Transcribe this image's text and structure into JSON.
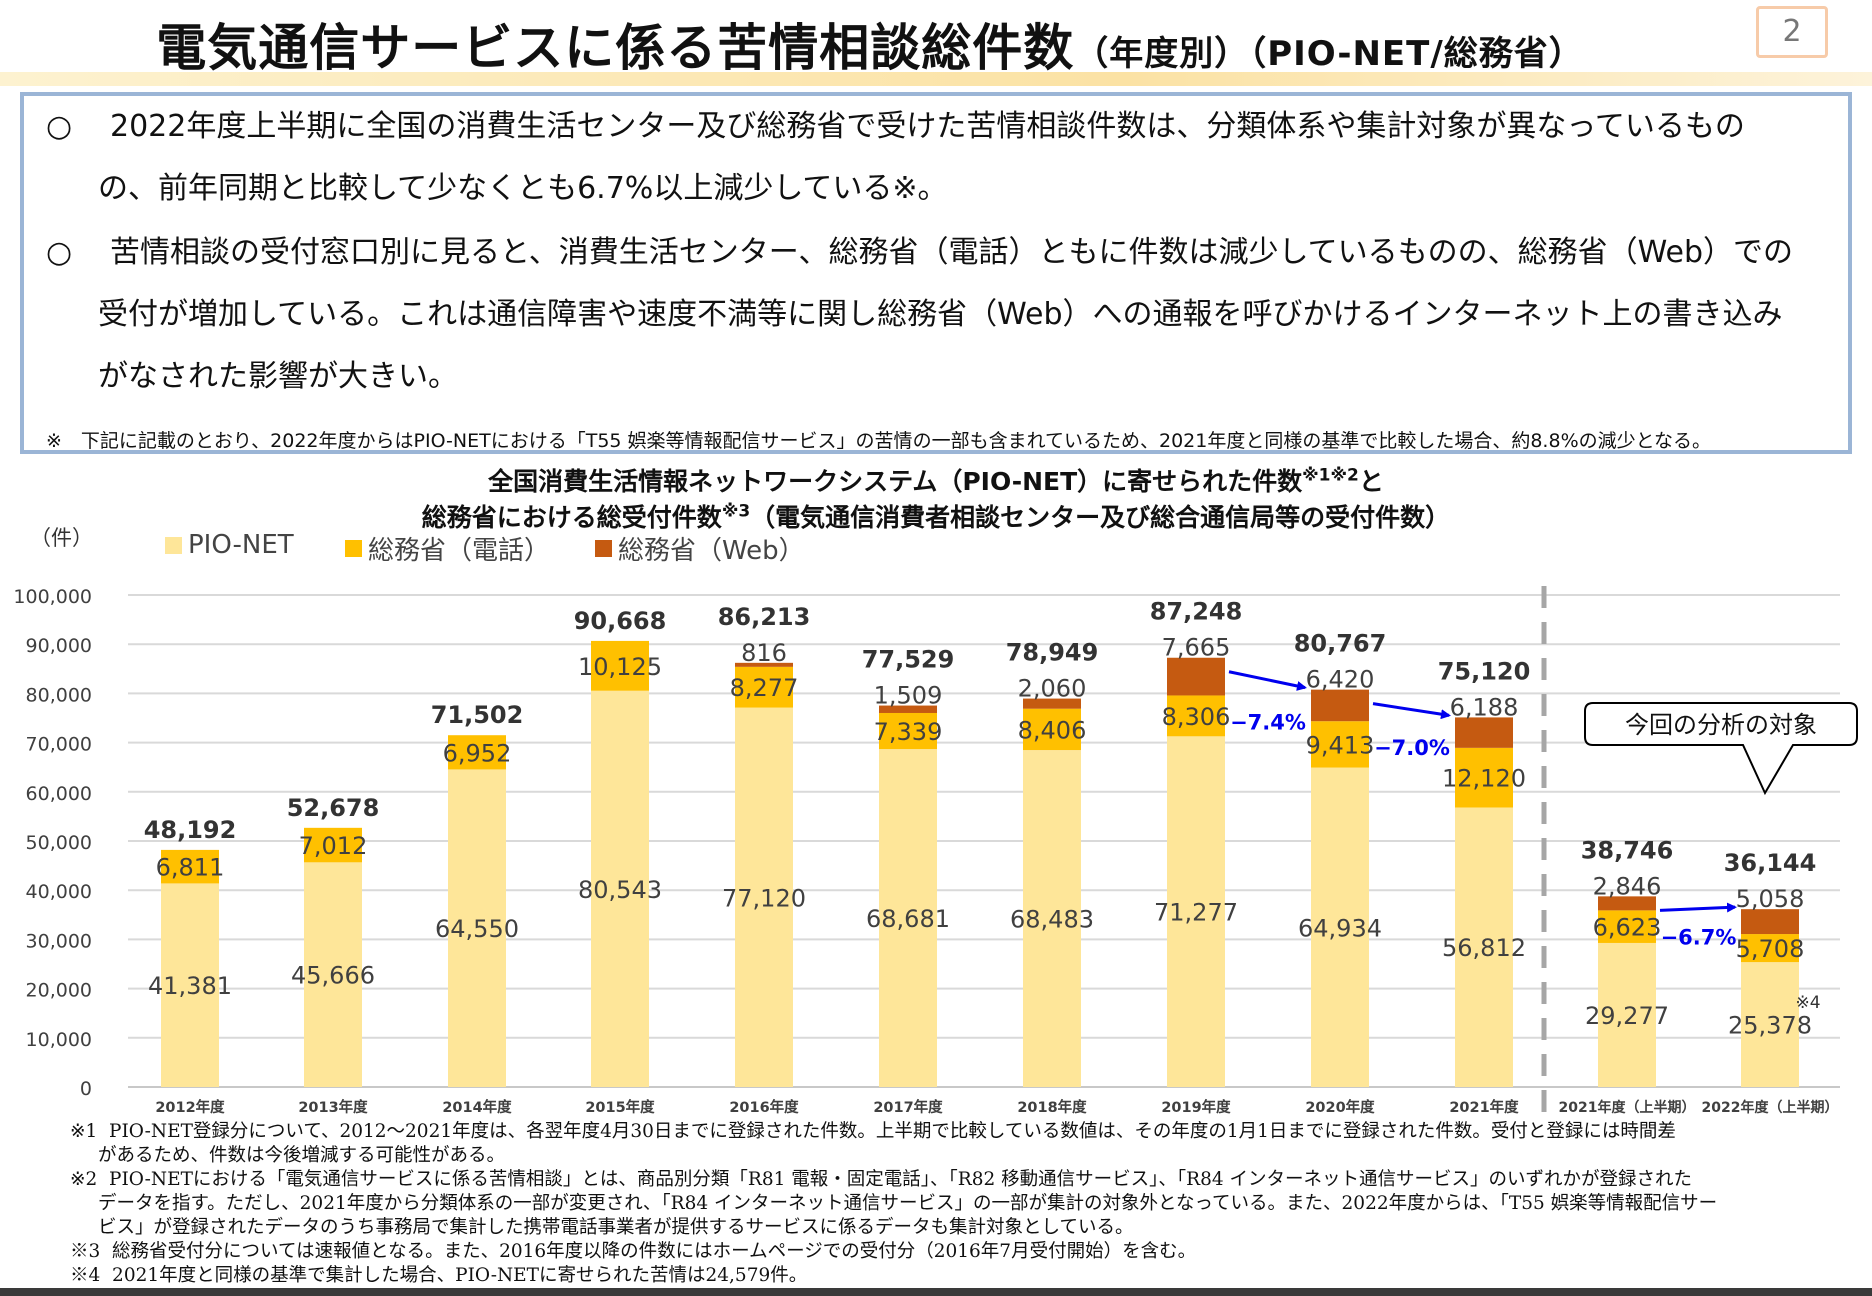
{
  "header": {
    "title_main": "電気通信サービスに係る苦情相談総件数",
    "title_sub": "（年度別）（PIO-NET/総務省）",
    "page_number": "2"
  },
  "summary": {
    "bullet_mark": "○",
    "bullets": [
      {
        "line1": "2022年度上半期に全国の消費生活センター及び総務省で受けた苦情相談件数は、分類体系や集計対象が異なっているもの",
        "line2": "の、前年同期と比較して少なくとも6.7%以上減少している※。"
      },
      {
        "line1": "苦情相談の受付窓口別に見ると、消費生活センター、総務省（電話）ともに件数は減少しているものの、総務省（Web）での",
        "line2": "受付が増加している。これは通信障害や速度不満等に関し総務省（Web）への通報を呼びかけるインターネット上の書き込み",
        "line3": "がなされた影響が大きい。"
      }
    ],
    "note": "※　下記に記載のとおり、2022年度からはPIO-NETにおける「T55 娯楽等情報配信サービス」の苦情の一部も含まれているため、2021年度と同様の基準で比較した場合、約8.8%の減少となる。"
  },
  "chart_data": {
    "type": "bar",
    "stacked": true,
    "title_line1": "全国消費生活情報ネットワークシステム（PIO-NET）に寄せられた件数",
    "title_line1_sup": "※1※2",
    "title_line1_end": "と",
    "title_line2": "総務省における総受付件数",
    "title_line2_sup": "※3",
    "title_line2_end": "（電気通信消費者相談センター及び総合通信局等の受付件数）",
    "ylabel": "（件）",
    "ylim": [
      0,
      100000
    ],
    "yticks": [
      0,
      10000,
      20000,
      30000,
      40000,
      50000,
      60000,
      70000,
      80000,
      90000,
      100000
    ],
    "ytick_labels": [
      "0",
      "10,000",
      "20,000",
      "30,000",
      "40,000",
      "50,000",
      "60,000",
      "70,000",
      "80,000",
      "90,000",
      "100,000"
    ],
    "grid": true,
    "legend_position": "top-left",
    "categories": [
      "2012年度",
      "2013年度",
      "2014年度",
      "2015年度",
      "2016年度",
      "2017年度",
      "2018年度",
      "2019年度",
      "2020年度",
      "2021年度",
      "2021年度（上半期）",
      "2022年度（上半期）"
    ],
    "series": [
      {
        "name": "PIO-NET",
        "color": "#fee699",
        "values": [
          41381,
          45666,
          64550,
          80543,
          77120,
          68681,
          68483,
          71277,
          64934,
          56812,
          29277,
          25378
        ]
      },
      {
        "name": "総務省（電話）",
        "color": "#ffc000",
        "values": [
          6811,
          7012,
          6952,
          10125,
          8277,
          7339,
          8406,
          8306,
          9413,
          12120,
          6623,
          5708
        ]
      },
      {
        "name": "総務省（Web）",
        "color": "#c55a11",
        "values": [
          0,
          0,
          0,
          0,
          816,
          1509,
          2060,
          7665,
          6420,
          6188,
          2846,
          5058
        ]
      }
    ],
    "totals": [
      48192,
      52678,
      71502,
      90668,
      86213,
      77529,
      78949,
      87248,
      80767,
      75120,
      38746,
      36144
    ],
    "annotations": {
      "changes": [
        {
          "from": "2019年度",
          "to": "2020年度",
          "label": "−7.4%"
        },
        {
          "from": "2020年度",
          "to": "2021年度",
          "label": "−7.0%"
        },
        {
          "from": "2021年度（上半期）",
          "to": "2022年度（上半期）",
          "label": "−6.7%"
        }
      ],
      "change_color": "#0000ee",
      "callout": "今回の分析の対象",
      "footnote_mark": "※4"
    }
  },
  "footnotes": [
    {
      "mark": "※1",
      "lines": [
        "PIO-NET登録分について、2012～2021年度は、各翌年度4月30日までに登録された件数。上半期で比較している数値は、その年度の1月1日までに登録された件数。受付と登録には時間差",
        "があるため、件数は今後増減する可能性がある。"
      ]
    },
    {
      "mark": "※2",
      "lines": [
        "PIO-NETにおける「電気通信サービスに係る苦情相談」とは、商品別分類「R81 電報・固定電話」、「R82 移動通信サービス」、「R84 インターネット通信サービス」のいずれかが登録された",
        "データを指す。ただし、2021年度から分類体系の一部が変更され、「R84 インターネット通信サービス」の一部が集計の対象外となっている。また、2022年度からは、「T55 娯楽等情報配信サー",
        "ビス」が登録されたデータのうち事務局で集計した携帯電話事業者が提供するサービスに係るデータも集計対象としている。"
      ]
    },
    {
      "mark": "※3",
      "lines": [
        "総務省受付分については速報値となる。また、2016年度以降の件数にはホームページでの受付分（2016年7月受付開始）を含む。"
      ]
    },
    {
      "mark": "※4",
      "lines": [
        "2021年度と同様の基準で集計した場合、PIO-NETに寄せられた苦情は24,579件。"
      ]
    }
  ]
}
